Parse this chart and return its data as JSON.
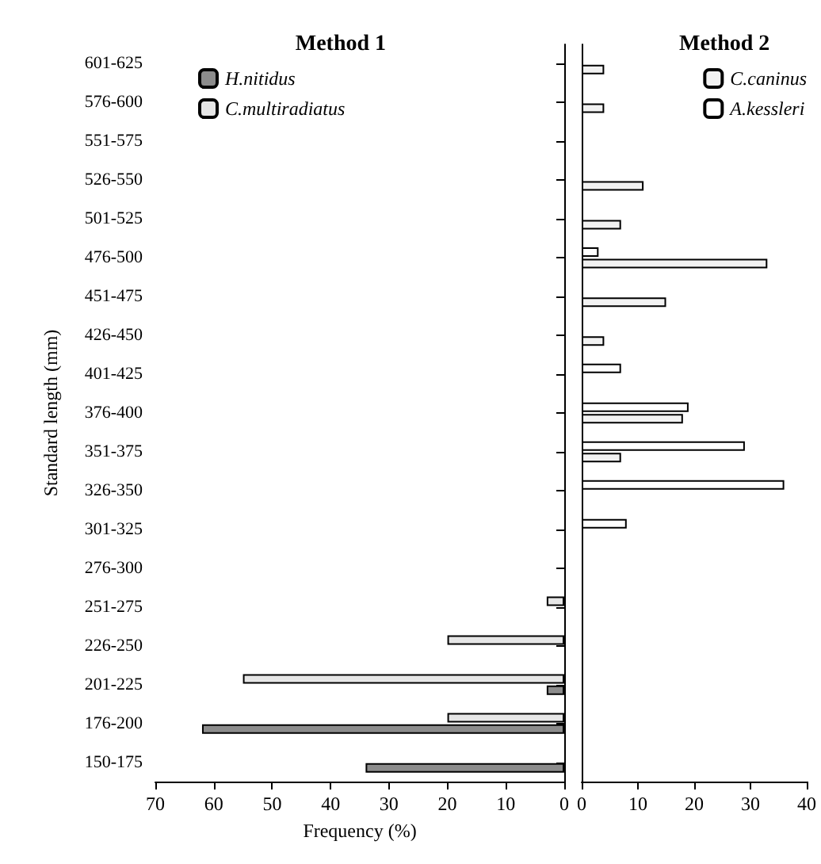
{
  "chart_data": [
    {
      "type": "bar",
      "orientation": "horizontal",
      "title": "Method 1",
      "xlabel": "Frequency (%)",
      "ylabel": "Standard length (mm)",
      "categories": [
        "601-625",
        "576-600",
        "551-575",
        "526-550",
        "501-525",
        "476-500",
        "451-475",
        "426-450",
        "401-425",
        "376-400",
        "351-375",
        "326-350",
        "301-325",
        "276-300",
        "251-275",
        "226-250",
        "201-225",
        "176-200",
        "150-175"
      ],
      "series": [
        {
          "name": "H.nitidus",
          "color": "#8c8c8c",
          "values": [
            null,
            null,
            null,
            null,
            null,
            null,
            null,
            null,
            null,
            null,
            null,
            null,
            null,
            null,
            null,
            null,
            3,
            62,
            34
          ]
        },
        {
          "name": "C.multiradiatus",
          "color": "#e6e6e6",
          "values": [
            null,
            null,
            null,
            null,
            null,
            null,
            null,
            null,
            null,
            null,
            null,
            null,
            null,
            null,
            3,
            20,
            55,
            20,
            null
          ]
        }
      ],
      "xlim": [
        70,
        0
      ],
      "xticks": [
        70,
        60,
        50,
        40,
        30,
        20,
        10,
        0
      ],
      "grid": false,
      "legend": "top left"
    },
    {
      "type": "bar",
      "orientation": "horizontal",
      "title": "Method 2",
      "categories": [
        null,
        null,
        null,
        null,
        null,
        null,
        null,
        null,
        null,
        null,
        null,
        null,
        null,
        null,
        null,
        null,
        null,
        null,
        null
      ],
      "series": [
        {
          "name": "C.caninus",
          "color": "#f2f2f2",
          "values": [
            4,
            4,
            null,
            11,
            7,
            33,
            15,
            4,
            null,
            18,
            7,
            null,
            null,
            null,
            null,
            null,
            null,
            null,
            null
          ]
        },
        {
          "name": "A.kessleri",
          "color": "#ffffff",
          "values": [
            null,
            null,
            null,
            null,
            null,
            3,
            null,
            null,
            7,
            19,
            29,
            36,
            8,
            null,
            null,
            null,
            null,
            null,
            null
          ]
        }
      ],
      "xlim": [
        0,
        40
      ],
      "xticks": [
        0,
        10,
        20,
        30,
        40
      ],
      "grid": false,
      "legend": "top right",
      "tick_labels": "x"
    }
  ]
}
